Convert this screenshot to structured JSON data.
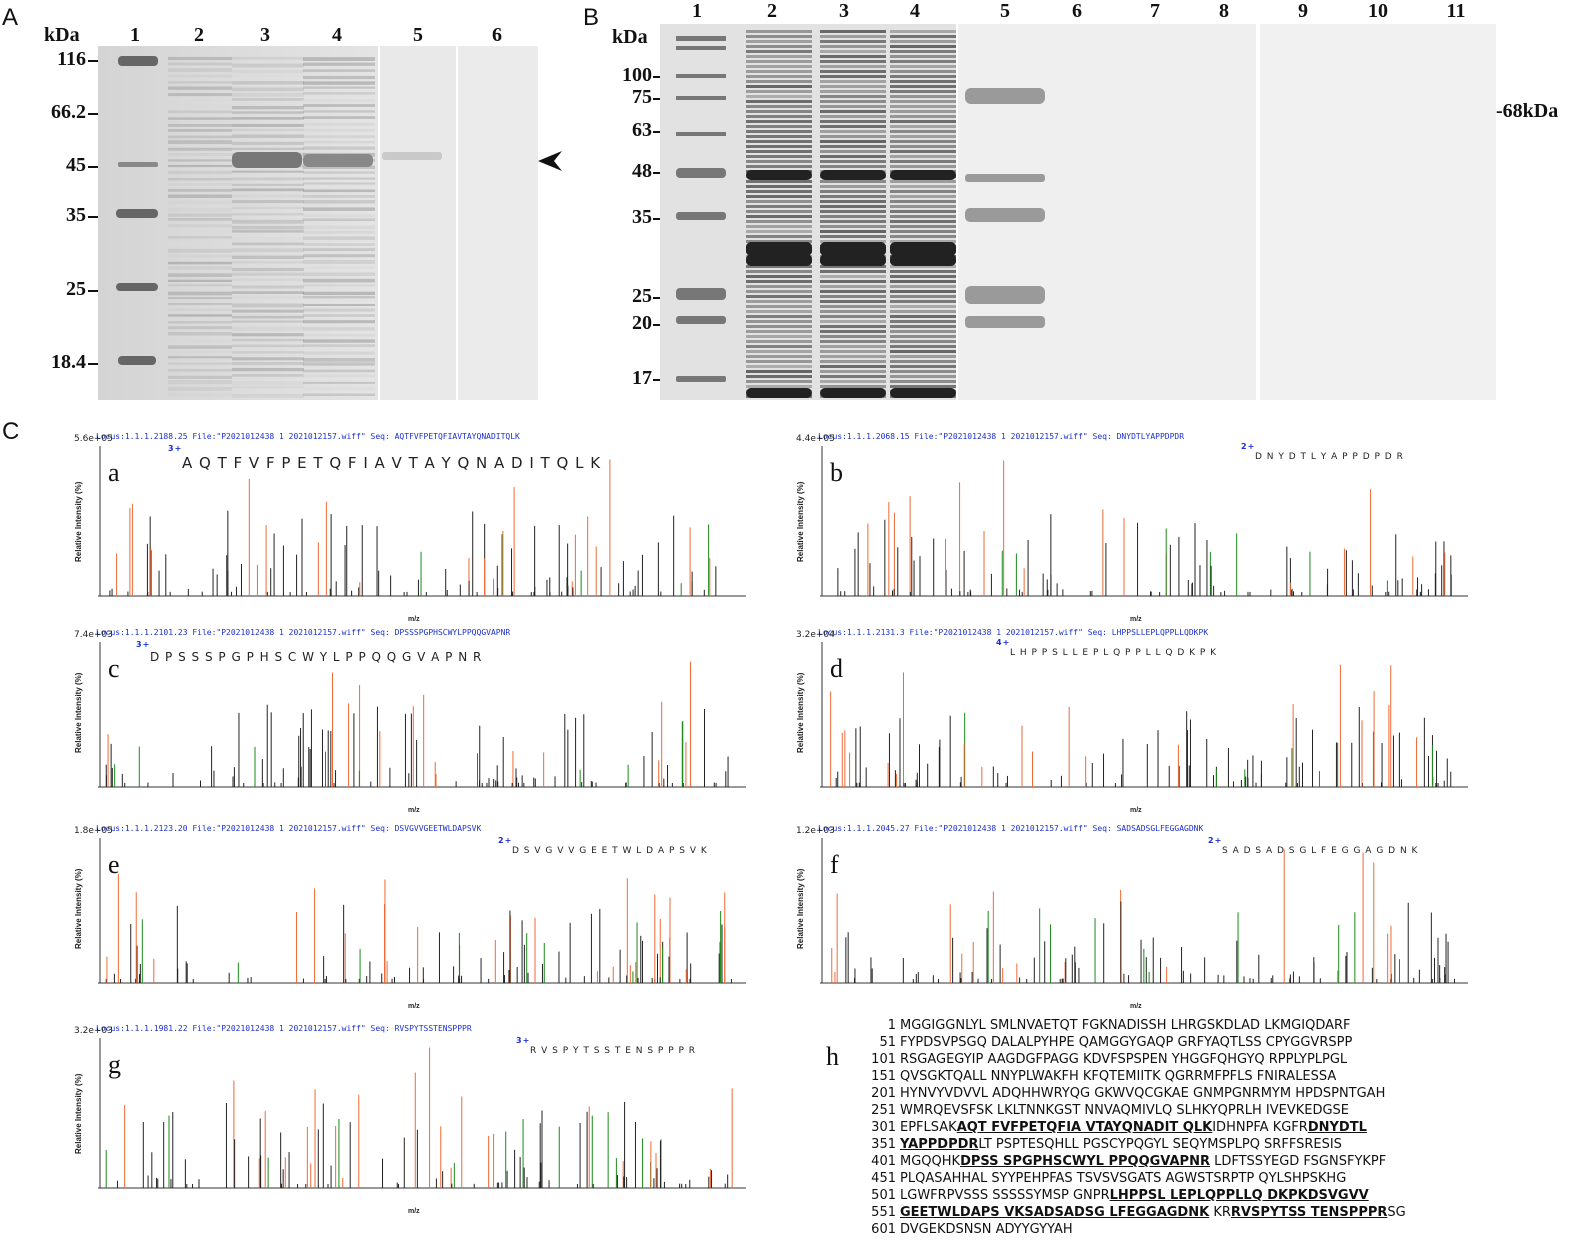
{
  "panelA": {
    "letter": "A",
    "kda": "kDa",
    "lanes": [
      "1",
      "2",
      "3",
      "4",
      "5",
      "6"
    ],
    "markers": [
      "116",
      "66.2",
      "45",
      "35",
      "25",
      "18.4"
    ],
    "arrow": "arrowhead-icon"
  },
  "panelB": {
    "letter": "B",
    "kda": "kDa",
    "lanes": [
      "1",
      "2",
      "3",
      "4",
      "5",
      "6",
      "7",
      "8",
      "9",
      "10",
      "11"
    ],
    "markers": [
      "100",
      "75",
      "63",
      "48",
      "35",
      "25",
      "20",
      "17"
    ],
    "band_label": "-68kDa"
  },
  "panelC": {
    "letter": "C",
    "spectra": [
      {
        "sub": "a",
        "header": "Locus:1.1.1.2188.25 File:\"P2021012438 1 2021012157.wiff\"     Seq: AQTFVFPETQFIAVTAYQNADITQLK",
        "scale": "5.6e+05",
        "charge": "3+",
        "sequence": "A Q T F V F P E T Q F I A V T A Y Q N A D I T Q L K"
      },
      {
        "sub": "b",
        "header": "Locus:1.1.1.2068.15 File:\"P2021012438 1 2021012157.wiff\"     Seq: DNYDTLYAPPDPDR",
        "scale": "4.4e+05",
        "charge": "2+",
        "sequence": "D N Y D T L Y A P P D P D R"
      },
      {
        "sub": "c",
        "header": "Locus:1.1.1.2101.23 File:\"P2021012438 1 2021012157.wiff\"     Seq: DPSSSPGPHSCWYLPPQQGVAPNR",
        "scale": "7.4e+03",
        "charge": "3+",
        "sequence": "D P S S S P G P H S C W Y L P P Q Q G V A P N R"
      },
      {
        "sub": "d",
        "header": "Locus:1.1.1.2131.3 File:\"P2021012438 1 2021012157.wiff\"     Seq: LHPPSLLEPLQPPLLQDKPK",
        "scale": "3.2e+04",
        "charge": "4+",
        "sequence": "L H P P S L L E P L Q P P L L Q D K P K"
      },
      {
        "sub": "e",
        "header": "Locus:1.1.1.2123.20 File:\"P2021012438 1 2021012157.wiff\"     Seq: DSVGVVGEETWLDAPSVK",
        "scale": "1.8e+05",
        "charge": "2+",
        "sequence": "D S V G V V G E E T W L D A P S V K"
      },
      {
        "sub": "f",
        "header": "Locus:1.1.1.2045.27 File:\"P2021012438 1 2021012157.wiff\"     Seq: SADSADSGLFEGGAGDNK",
        "scale": "1.2e+03",
        "charge": "2+",
        "sequence": "S A D S A D S G L F E G G A G D N K"
      },
      {
        "sub": "g",
        "header": "Locus:1.1.1.1981.22 File:\"P2021012438 1 2021012157.wiff\"     Seq: RVSPYTSSTENSPPPR",
        "scale": "3.2e+03",
        "charge": "3+",
        "sequence": "R V S P Y T S S T E N S P P P R"
      }
    ],
    "ylabel": "Relative Intensity (%)",
    "xlabel": "m/z"
  },
  "panelH": {
    "sub": "h",
    "lines": [
      {
        "n": "1",
        "segs": [
          {
            "t": "MGGIGGNLYL SMLNVAETQT FGKNADISSH LHRGSKDLAD LKMGIQDARF",
            "u": false
          }
        ]
      },
      {
        "n": "51",
        "segs": [
          {
            "t": "FYPDSVPSGQ DALALPYHPE QAMGGYGAQP GRFYAQTLSS CPYGGVRSPP",
            "u": false
          }
        ]
      },
      {
        "n": "101",
        "segs": [
          {
            "t": "RSGAGEGYIP AAGDGFPAGG KDVFSPSPEN YHGGFQHGYQ RPPLYPLPGL",
            "u": false
          }
        ]
      },
      {
        "n": "151",
        "segs": [
          {
            "t": "QVSGKTQALL NNYPLWAKFH KFQTEMIITK QGRRMFPFLS FNIRALESSA",
            "u": false
          }
        ]
      },
      {
        "n": "201",
        "segs": [
          {
            "t": "HYNVYVDVVL ADQHHWRYQG GKWVQCGKAE GNMPGNRMYM HPDSPNTGAH",
            "u": false
          }
        ]
      },
      {
        "n": "251",
        "segs": [
          {
            "t": "WMRQEVSFSK LKLTNNKGST NNVAQMIVLQ SLHKYQPRLH IVEVKEDGSE",
            "u": false
          }
        ]
      },
      {
        "n": "301",
        "segs": [
          {
            "t": "EPFLSAK",
            "u": false
          },
          {
            "t": "AQT FVFPETQFIA VTAYQNADIT QLK",
            "u": true
          },
          {
            "t": "IDHNPFA KGFR",
            "u": false
          },
          {
            "t": "DNYDTL",
            "u": true
          }
        ]
      },
      {
        "n": "351",
        "segs": [
          {
            "t": "YAPPDPDR",
            "u": true
          },
          {
            "t": "LT PSPTESQHLL PGSCYPQGYL SEQYMSPLPQ SRFFSRESIS",
            "u": false
          }
        ]
      },
      {
        "n": "401",
        "segs": [
          {
            "t": "MGQQHK",
            "u": false
          },
          {
            "t": "DPSS SPGPHSCWYL PPQQGVAPNR",
            "u": true
          },
          {
            "t": " LDFTSSYEGD FSGNSFYKPF",
            "u": false
          }
        ]
      },
      {
        "n": "451",
        "segs": [
          {
            "t": "PLQASAHHAL SYYPEHPFAS TSVSVSGATS AGWSTSRPTP QYLSHPSKHG",
            "u": false
          }
        ]
      },
      {
        "n": "501",
        "segs": [
          {
            "t": "LGWFRPVSSS SSSSSYMSP GNPR",
            "u": false
          },
          {
            "t": "LHPPSL LEPLQPPLLQ DKPKDSVGVV",
            "u": true
          }
        ]
      },
      {
        "n": "551",
        "segs": [
          {
            "t": "GEETWLDAPS VKSADSADSG LFEGGAGDNK",
            "u": true
          },
          {
            "t": " KR",
            "u": false
          },
          {
            "t": "RVSPYTSS TENSPPPR",
            "u": true
          },
          {
            "t": "SG",
            "u": false
          }
        ]
      },
      {
        "n": "601",
        "segs": [
          {
            "t": "DVGEKDSNSN ADYYGYYAH",
            "u": false
          }
        ]
      }
    ]
  }
}
